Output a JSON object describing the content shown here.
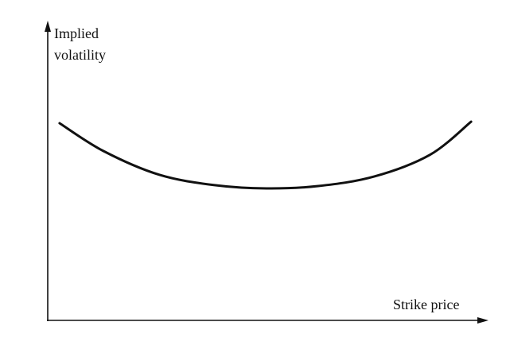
{
  "chart_data": {
    "type": "line",
    "y_label": [
      "Implied",
      "volatility"
    ],
    "x_label": "Strike price",
    "xlim": [
      0,
      100
    ],
    "ylim": [
      0,
      100
    ],
    "x": [
      2.7,
      12.7,
      25.4,
      38.0,
      49.8,
      61.6,
      74.3,
      87.0,
      96.4
    ],
    "series": [
      {
        "color": "#111111",
        "values": [
          66.5,
          57.1,
          49.1,
          45.6,
          44.5,
          45.3,
          48.5,
          55.8,
          67.0
        ]
      }
    ]
  }
}
